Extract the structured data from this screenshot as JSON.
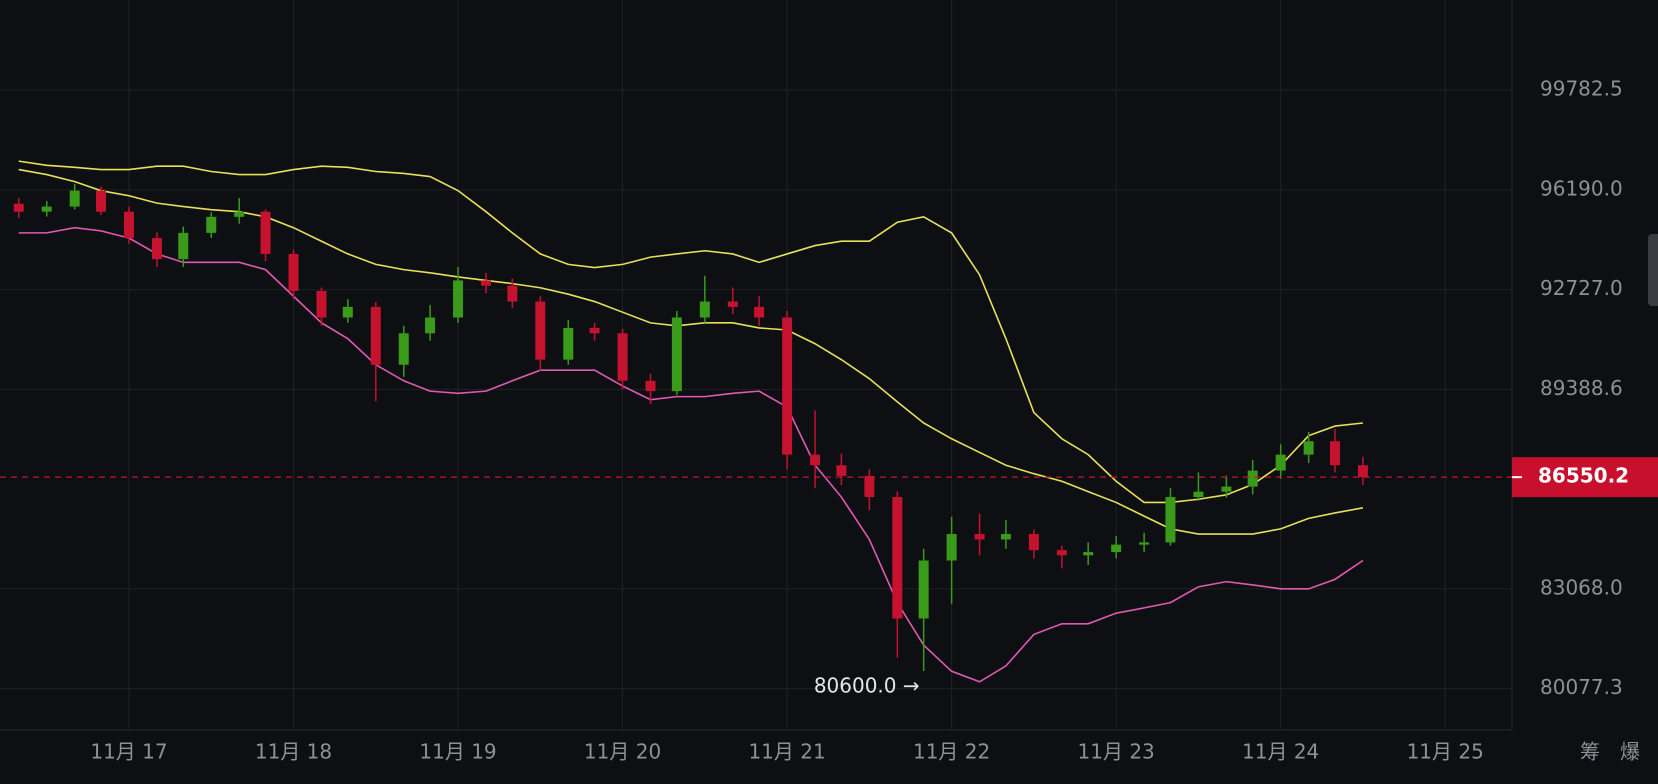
{
  "chart_data": {
    "type": "candlestick",
    "x": [
      16.33,
      16.5,
      16.67,
      16.83,
      17,
      17.17,
      17.33,
      17.5,
      17.67,
      17.83,
      18,
      18.17,
      18.33,
      18.5,
      18.67,
      18.83,
      19,
      19.17,
      19.33,
      19.5,
      19.67,
      19.83,
      20,
      20.17,
      20.33,
      20.5,
      20.67,
      20.83,
      21,
      21.17,
      21.33,
      21.5,
      21.67,
      21.83,
      22,
      22.17,
      22.33,
      22.5,
      22.67,
      22.83,
      23,
      23.17,
      23.33,
      23.5,
      23.67,
      23.83,
      24,
      24.17,
      24.33,
      24.5
    ],
    "open": [
      95700,
      95420,
      95600,
      96160,
      95420,
      94500,
      93770,
      94680,
      95240,
      95420,
      93950,
      92680,
      91780,
      92140,
      90200,
      91250,
      91780,
      93040,
      92860,
      92320,
      90370,
      91430,
      91250,
      89670,
      89330,
      91780,
      92320,
      92140,
      91780,
      87270,
      86930,
      86590,
      85920,
      82170,
      83940,
      84760,
      84590,
      84760,
      84260,
      84100,
      84200,
      84430,
      84500,
      85920,
      86090,
      86250,
      86760,
      87270,
      87700,
      86930
    ],
    "high": [
      95900,
      95800,
      96400,
      96300,
      95600,
      94700,
      94900,
      95400,
      95900,
      95500,
      94100,
      92800,
      92400,
      92300,
      91500,
      92200,
      93500,
      93300,
      93100,
      92500,
      91700,
      91600,
      91400,
      89900,
      92000,
      93200,
      92800,
      92500,
      92000,
      88700,
      87300,
      86800,
      86100,
      84300,
      85300,
      85400,
      85200,
      84900,
      84400,
      84500,
      84700,
      84800,
      86200,
      86700,
      86600,
      87100,
      87600,
      88000,
      88100,
      87200
    ],
    "low": [
      95200,
      95250,
      95500,
      95300,
      94300,
      93500,
      93500,
      94500,
      95000,
      93700,
      92400,
      91500,
      91600,
      89000,
      89800,
      91000,
      91600,
      92600,
      92100,
      90000,
      90200,
      91000,
      89400,
      88900,
      89200,
      91600,
      91900,
      91500,
      86800,
      86200,
      86300,
      85500,
      81000,
      80600,
      82600,
      84100,
      84300,
      84000,
      83700,
      83800,
      84000,
      84200,
      84400,
      85800,
      85900,
      86000,
      86500,
      87000,
      86700,
      86300
    ],
    "close": [
      95420,
      95600,
      96160,
      95420,
      94500,
      93770,
      94680,
      95240,
      95420,
      93950,
      92680,
      91780,
      92140,
      90200,
      91250,
      91780,
      93040,
      92860,
      92320,
      90370,
      91430,
      91250,
      89670,
      89330,
      91780,
      92320,
      92140,
      91780,
      87270,
      86930,
      86590,
      85920,
      82170,
      83940,
      84760,
      84590,
      84760,
      84260,
      84100,
      84200,
      84430,
      84500,
      85920,
      86090,
      86250,
      86760,
      87270,
      87700,
      86930,
      86550.2
    ],
    "lines": [
      {
        "color": "#e8e05a",
        "values": [
          97210,
          97060,
          96990,
          96910,
          96910,
          97030,
          97030,
          96840,
          96730,
          96730,
          96910,
          97030,
          96990,
          96840,
          96770,
          96660,
          96160,
          95420,
          94680,
          93950,
          93590,
          93480,
          93590,
          93840,
          93950,
          94060,
          93950,
          93660,
          93950,
          94240,
          94390,
          94390,
          95050,
          95240,
          94680,
          93230,
          91070,
          88630,
          87780,
          87270,
          86420,
          85750,
          85750,
          85850,
          85990,
          86320,
          86930,
          87880,
          88190,
          88290
        ]
      },
      {
        "color": "#e8e05a",
        "values": [
          96910,
          96730,
          96480,
          96160,
          95980,
          95720,
          95600,
          95490,
          95420,
          95240,
          94860,
          94390,
          93950,
          93590,
          93410,
          93300,
          93160,
          93040,
          92930,
          92790,
          92570,
          92320,
          91960,
          91600,
          91500,
          91600,
          91600,
          91430,
          91360,
          90900,
          90370,
          89740,
          88980,
          88290,
          87780,
          87340,
          86930,
          86660,
          86420,
          86090,
          85750,
          85320,
          84920,
          84760,
          84760,
          84760,
          84920,
          85250,
          85420,
          85580
        ]
      },
      {
        "color": "#e05ab4",
        "values": [
          94680,
          94680,
          94860,
          94750,
          94500,
          93950,
          93660,
          93660,
          93660,
          93410,
          92500,
          91600,
          91070,
          90200,
          89670,
          89330,
          89260,
          89330,
          89670,
          90020,
          90020,
          90020,
          89500,
          89050,
          89150,
          89150,
          89260,
          89330,
          88810,
          86930,
          85920,
          84590,
          82650,
          81370,
          80590,
          80280,
          80750,
          81690,
          82010,
          82010,
          82330,
          82490,
          82650,
          83130,
          83290,
          83190,
          83070,
          83070,
          83360,
          83940
        ]
      }
    ],
    "xlim": [
      16.216,
      25.406
    ],
    "xticks": [
      {
        "value": 17,
        "label": "11月 17"
      },
      {
        "value": 18,
        "label": "11月 18"
      },
      {
        "value": 19,
        "label": "11月 19"
      },
      {
        "value": 20,
        "label": "11月 20"
      },
      {
        "value": 21,
        "label": "11月 21"
      },
      {
        "value": 22,
        "label": "11月 22"
      },
      {
        "value": 23,
        "label": "11月 23"
      },
      {
        "value": 24,
        "label": "11月 24"
      },
      {
        "value": 25,
        "label": "11月 25"
      }
    ],
    "ylim": [
      78870,
      103140
    ],
    "yticks": [
      99782.5,
      {
        "value": 96190,
        "label": "96190.0"
      },
      {
        "value": 92727,
        "label": "92727.0"
      },
      89388.6,
      {
        "value": 83068,
        "label": "83068.0"
      },
      80077.3
    ],
    "log_scale": true,
    "grid": true,
    "up_color": "#3a9a1a",
    "down_color": "#c4122f",
    "current_price": 86550.2,
    "current_color": "#c8102e",
    "annotation": {
      "label": "80600.0 →",
      "value": 80600,
      "x": 21.83
    }
  },
  "toolbar": [
    "筹",
    "爆"
  ]
}
